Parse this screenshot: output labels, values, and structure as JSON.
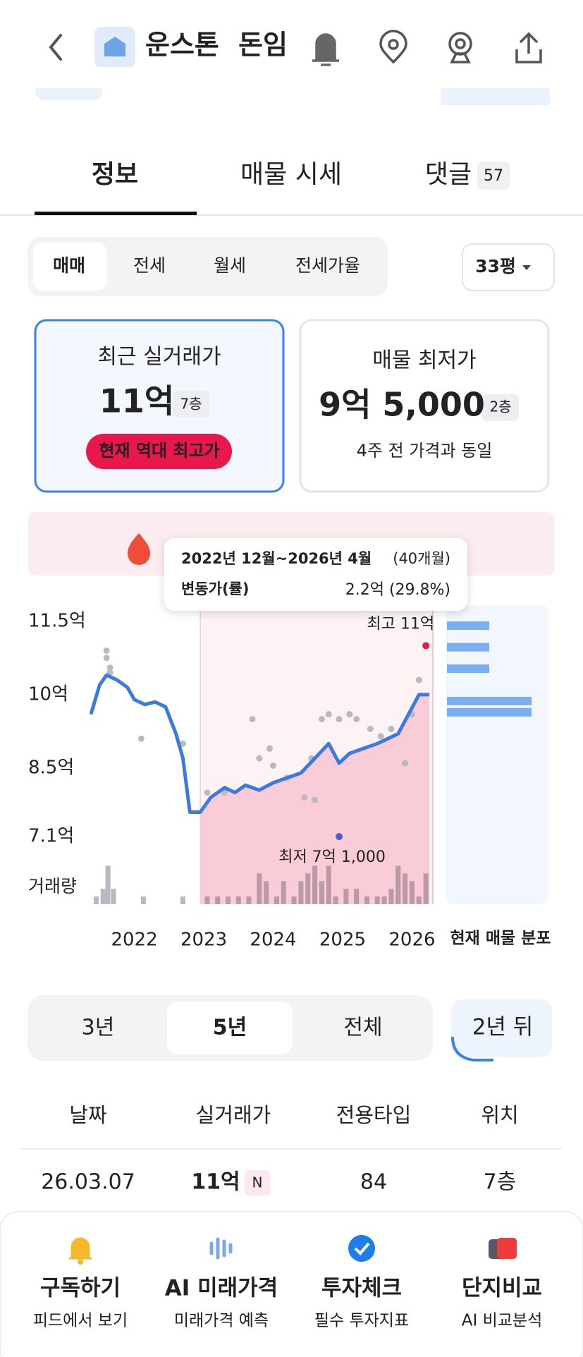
{
  "header": {
    "title": "운스톤 돈임"
  },
  "tabs": [
    {
      "label": "정보"
    },
    {
      "label": "매물 시세"
    },
    {
      "label": "댓글",
      "badge": 57
    }
  ],
  "trade_types": [
    "매매",
    "전세",
    "월세",
    "전세가율"
  ],
  "size": "33평",
  "cards": [
    {
      "title": "최근 실거래가",
      "price": "11억",
      "floor": "7층",
      "tag": "현재 역대 최고가"
    },
    {
      "title": "매물 최저가",
      "price": "9억 5,000",
      "floor": "2층",
      "note": "4주 전 가격과 동일"
    }
  ],
  "tooltip": {
    "period": "2022년 12월~2026년 4월",
    "months": "(40개월)",
    "label": "변동가(률)",
    "change": "2.2억 (29.8%)"
  },
  "chart_data": {
    "type": "line",
    "xlim": [
      2021.375,
      2026.3
    ],
    "xticks": [
      2022,
      2023,
      2024,
      2025,
      2026
    ],
    "ylim": [
      6.8,
      11.8
    ],
    "yticks": [
      {
        "value": 11.5,
        "label": "11.5억"
      },
      {
        "value": 10,
        "label": "10억"
      },
      {
        "value": 8.5,
        "label": "8.5억"
      },
      {
        "value": 7.1,
        "label": "7.1억"
      }
    ],
    "highlight": [
      2022.95,
      2026.3
    ],
    "series": [
      {
        "name": "실거래가",
        "color": "#3b7be0",
        "x": [
          2021.375,
          2021.5,
          2021.6,
          2021.75,
          2021.9,
          2022.0,
          2022.15,
          2022.3,
          2022.45,
          2022.6,
          2022.7,
          2022.8,
          2022.95,
          2023.1,
          2023.3,
          2023.45,
          2023.6,
          2023.8,
          2024.0,
          2024.2,
          2024.4,
          2024.6,
          2024.8,
          2024.95,
          2025.1,
          2025.3,
          2025.5,
          2025.65,
          2025.8,
          2025.95,
          2026.1,
          2026.25
        ],
        "values": [
          9.6,
          10.2,
          10.4,
          10.3,
          10.15,
          9.9,
          9.8,
          9.85,
          9.75,
          9.2,
          8.7,
          7.6,
          7.6,
          7.9,
          8.1,
          8.0,
          8.15,
          8.05,
          8.2,
          8.3,
          8.4,
          8.7,
          9.0,
          8.6,
          8.8,
          8.9,
          9.0,
          9.1,
          9.2,
          9.6,
          10.0,
          10.0
        ]
      }
    ],
    "trades": {
      "color": "#b9b9c2",
      "x": [
        2021.6,
        2021.6,
        2021.65,
        2021.65,
        2022.1,
        2022.7,
        2023.05,
        2023.3,
        2023.7,
        2023.8,
        2023.95,
        2024.0,
        2024.2,
        2024.45,
        2024.55,
        2024.6,
        2024.7,
        2024.8,
        2024.95,
        2025.1,
        2025.2,
        2025.4,
        2025.55,
        2025.7,
        2025.9,
        2026.0,
        2026.1
      ],
      "values": [
        10.9,
        10.75,
        10.45,
        10.55,
        9.1,
        9.0,
        8.0,
        8.0,
        9.5,
        8.7,
        8.9,
        8.55,
        8.3,
        7.9,
        8.7,
        7.85,
        9.5,
        9.6,
        9.5,
        9.6,
        9.5,
        9.3,
        9.15,
        9.3,
        8.6,
        9.6,
        10.3
      ]
    },
    "max": {
      "x": 2026.2,
      "value": 11,
      "label": "최고 11억"
    },
    "min": {
      "x": 2024.95,
      "value": 7.1,
      "label": "최저 7억 1,000"
    },
    "volume_label": "거래량",
    "volume_lim": [
      0,
      5.5
    ],
    "volume": {
      "x": [
        2021.45,
        2021.55,
        2021.62,
        2021.7,
        2022.13,
        2022.7,
        2023.05,
        2023.2,
        2023.35,
        2023.5,
        2023.65,
        2023.8,
        2023.9,
        2024.05,
        2024.15,
        2024.3,
        2024.4,
        2024.5,
        2024.6,
        2024.7,
        2024.8,
        2024.9,
        2025.05,
        2025.2,
        2025.35,
        2025.5,
        2025.6,
        2025.7,
        2025.8,
        2025.9,
        2026.0,
        2026.1,
        2026.2
      ],
      "values": [
        1,
        2,
        5,
        2,
        1,
        1,
        1,
        1,
        1,
        1,
        1,
        4,
        3,
        1,
        3,
        1,
        3,
        4,
        5,
        3,
        5,
        1,
        2,
        2,
        1,
        1,
        1,
        2,
        5,
        4,
        3,
        1,
        4
      ]
    },
    "distribution_label": "현재 매물 분포",
    "listings": {
      "price": [
        11.41,
        10.97,
        10.53,
        9.87,
        9.64
      ],
      "count": [
        1,
        1,
        1,
        2,
        2
      ]
    }
  },
  "periods": [
    "3년",
    "5년",
    "전체"
  ],
  "forecast": "2년 뒤",
  "table": {
    "columns": [
      "날짜",
      "실거래가",
      "전용타입",
      "위치"
    ],
    "rows": [
      [
        "26.03.07",
        "11억",
        84,
        "7층"
      ]
    ],
    "badge": "N"
  },
  "bottom_nav": [
    {
      "title": "구독하기",
      "subtitle": "피드에서 보기"
    },
    {
      "title": "AI 미래가격",
      "subtitle": "미래가격 예측"
    },
    {
      "title": "투자체크",
      "subtitle": "필수 투자지표"
    },
    {
      "title": "단지비교",
      "subtitle": "AI 비교분석"
    }
  ]
}
